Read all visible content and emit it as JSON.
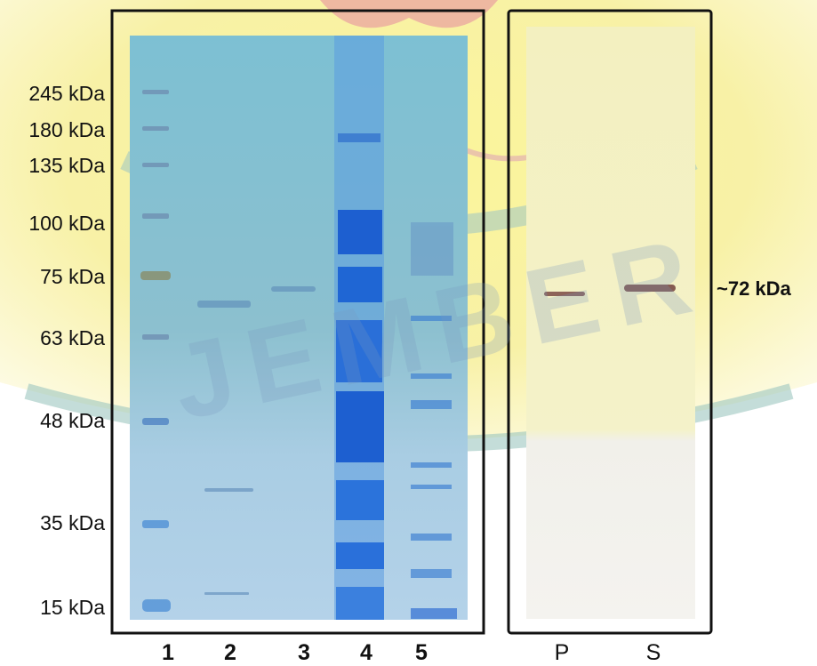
{
  "figure": {
    "marker_labels": [
      "245 kDa",
      "180 kDa",
      "135 kDa",
      "100 kDa",
      "75 kDa",
      "63 kDa",
      "48 kDa",
      "35 kDa",
      "15 kDa"
    ],
    "lane_labels": [
      "1",
      "2",
      "3",
      "4",
      "5"
    ],
    "blot_lane_labels": [
      "P",
      "S"
    ],
    "band_annotation": "~72 kDa",
    "watermark_text": "JEMBER",
    "colors": {
      "gel_stain": "#5f9fd6",
      "band_dark": "#1d5fd0",
      "blot_membrane": "#f4f2e6",
      "blot_band": "#7a4a44",
      "watermark_yellow": "#f6ec8a",
      "watermark_red": "#d98a8a",
      "watermark_teal": "#7bb8ad"
    }
  }
}
